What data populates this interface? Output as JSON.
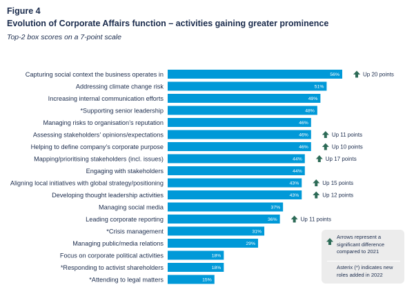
{
  "figure_label": "Figure 4",
  "title": "Evolution of Corporate Affairs function – activities gaining greater prominence",
  "subtitle": "Top-2 box scores on a 7-point scale",
  "colors": {
    "bar": "#0099d8",
    "arrow": "#2d6b57",
    "text": "#1a2b4c",
    "legend_bg": "#ececec"
  },
  "legend": {
    "arrow_icon": "up-arrow-icon",
    "arrow_note": "Arrows represent a significant difference compared to 2021",
    "asterisk_note": "Asterix (*) indicates new roles added in 2022"
  },
  "chart_data": {
    "type": "bar",
    "orientation": "horizontal",
    "title": "Evolution of Corporate Affairs function – activities gaining greater prominence",
    "subtitle": "Top-2 box scores on a 7-point scale",
    "value_format": "percent",
    "xlim": [
      0,
      56
    ],
    "grid": false,
    "categories": [
      "Capturing social context the business operates in",
      "Addressing climate change risk",
      "Increasing internal communication efforts",
      "*Supporting senior leadership",
      "Managing risks to organisation’s reputation",
      "Assessing stakeholders’ opinions/expectations",
      "Helping to define company’s corporate purpose",
      "Mapping/prioritising stakeholders (incl. issues)",
      "Engaging with stakeholders",
      "Aligning local initiatives with global strategy/positioning",
      "Developing thought leadership activities",
      "Managing social media",
      "Leading corporate reporting",
      "*Crisis management",
      "Managing public/media relations",
      "Focus on corporate political activities",
      "*Responding to activist shareholders",
      "*Attending to legal matters"
    ],
    "values": [
      56,
      51,
      49,
      48,
      46,
      46,
      46,
      44,
      44,
      43,
      43,
      37,
      36,
      31,
      29,
      18,
      18,
      15
    ],
    "data_labels": [
      "56%",
      "51%",
      "49%",
      "48%",
      "46%",
      "46%",
      "46%",
      "44%",
      "44%",
      "43%",
      "43%",
      "37%",
      "36%",
      "31%",
      "29%",
      "18%",
      "18%",
      "15%"
    ],
    "change_annotations": [
      "Up 20 points",
      "",
      "",
      "",
      "",
      "Up 11 points",
      "Up 10 points",
      "Up 17 points",
      "",
      "Up 15 points",
      "Up 12 points",
      "",
      "Up 11 points",
      "",
      "",
      "",
      "",
      ""
    ]
  }
}
